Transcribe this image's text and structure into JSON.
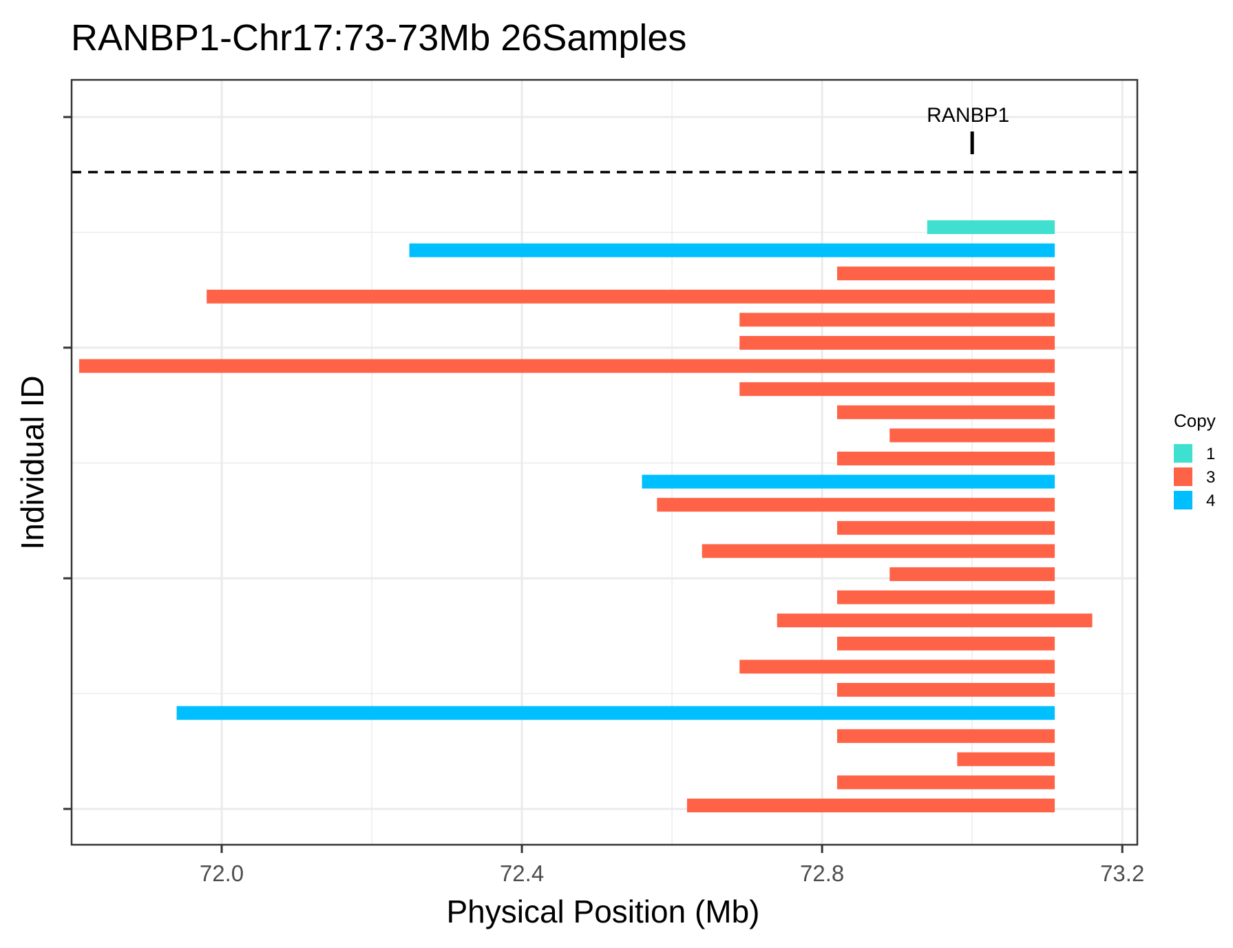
{
  "chart_data": {
    "type": "bar",
    "subtype": "horizontal-segment",
    "title": "RANBP1-Chr17:73-73Mb 26Samples",
    "xlabel": "Physical Position (Mb)",
    "ylabel": "Individual ID",
    "xlim": [
      71.8,
      73.22
    ],
    "x_ticks": [
      "72.0",
      "72.4",
      "72.8",
      "73.2"
    ],
    "x_tick_values": [
      72.0,
      72.4,
      72.8,
      73.2
    ],
    "grid": true,
    "legend": {
      "title": "Copy",
      "placement": "right",
      "items": [
        {
          "label": "1",
          "color": "#40E0D0"
        },
        {
          "label": "3",
          "color": "#FF6347"
        },
        {
          "label": "4",
          "color": "#00BFFF"
        }
      ]
    },
    "gene": {
      "name": "RANBP1",
      "position": 73.0
    },
    "segments": [
      {
        "start": 72.94,
        "end": 73.11,
        "copy": 1
      },
      {
        "start": 72.25,
        "end": 73.11,
        "copy": 4
      },
      {
        "start": 72.82,
        "end": 73.11,
        "copy": 3
      },
      {
        "start": 71.98,
        "end": 73.11,
        "copy": 3
      },
      {
        "start": 72.69,
        "end": 73.11,
        "copy": 3
      },
      {
        "start": 72.69,
        "end": 73.11,
        "copy": 3
      },
      {
        "start": 71.81,
        "end": 73.11,
        "copy": 3
      },
      {
        "start": 72.69,
        "end": 73.11,
        "copy": 3
      },
      {
        "start": 72.82,
        "end": 73.11,
        "copy": 3
      },
      {
        "start": 72.89,
        "end": 73.11,
        "copy": 3
      },
      {
        "start": 72.82,
        "end": 73.11,
        "copy": 3
      },
      {
        "start": 72.56,
        "end": 73.11,
        "copy": 4
      },
      {
        "start": 72.58,
        "end": 73.11,
        "copy": 3
      },
      {
        "start": 72.82,
        "end": 73.11,
        "copy": 3
      },
      {
        "start": 72.64,
        "end": 73.11,
        "copy": 3
      },
      {
        "start": 72.89,
        "end": 73.11,
        "copy": 3
      },
      {
        "start": 72.82,
        "end": 73.11,
        "copy": 3
      },
      {
        "start": 72.74,
        "end": 73.16,
        "copy": 3
      },
      {
        "start": 72.82,
        "end": 73.11,
        "copy": 3
      },
      {
        "start": 72.69,
        "end": 73.11,
        "copy": 3
      },
      {
        "start": 72.82,
        "end": 73.11,
        "copy": 3
      },
      {
        "start": 71.94,
        "end": 73.11,
        "copy": 4
      },
      {
        "start": 72.82,
        "end": 73.11,
        "copy": 3
      },
      {
        "start": 72.98,
        "end": 73.11,
        "copy": 3
      },
      {
        "start": 72.82,
        "end": 73.11,
        "copy": 3
      },
      {
        "start": 72.62,
        "end": 73.11,
        "copy": 3
      }
    ]
  }
}
